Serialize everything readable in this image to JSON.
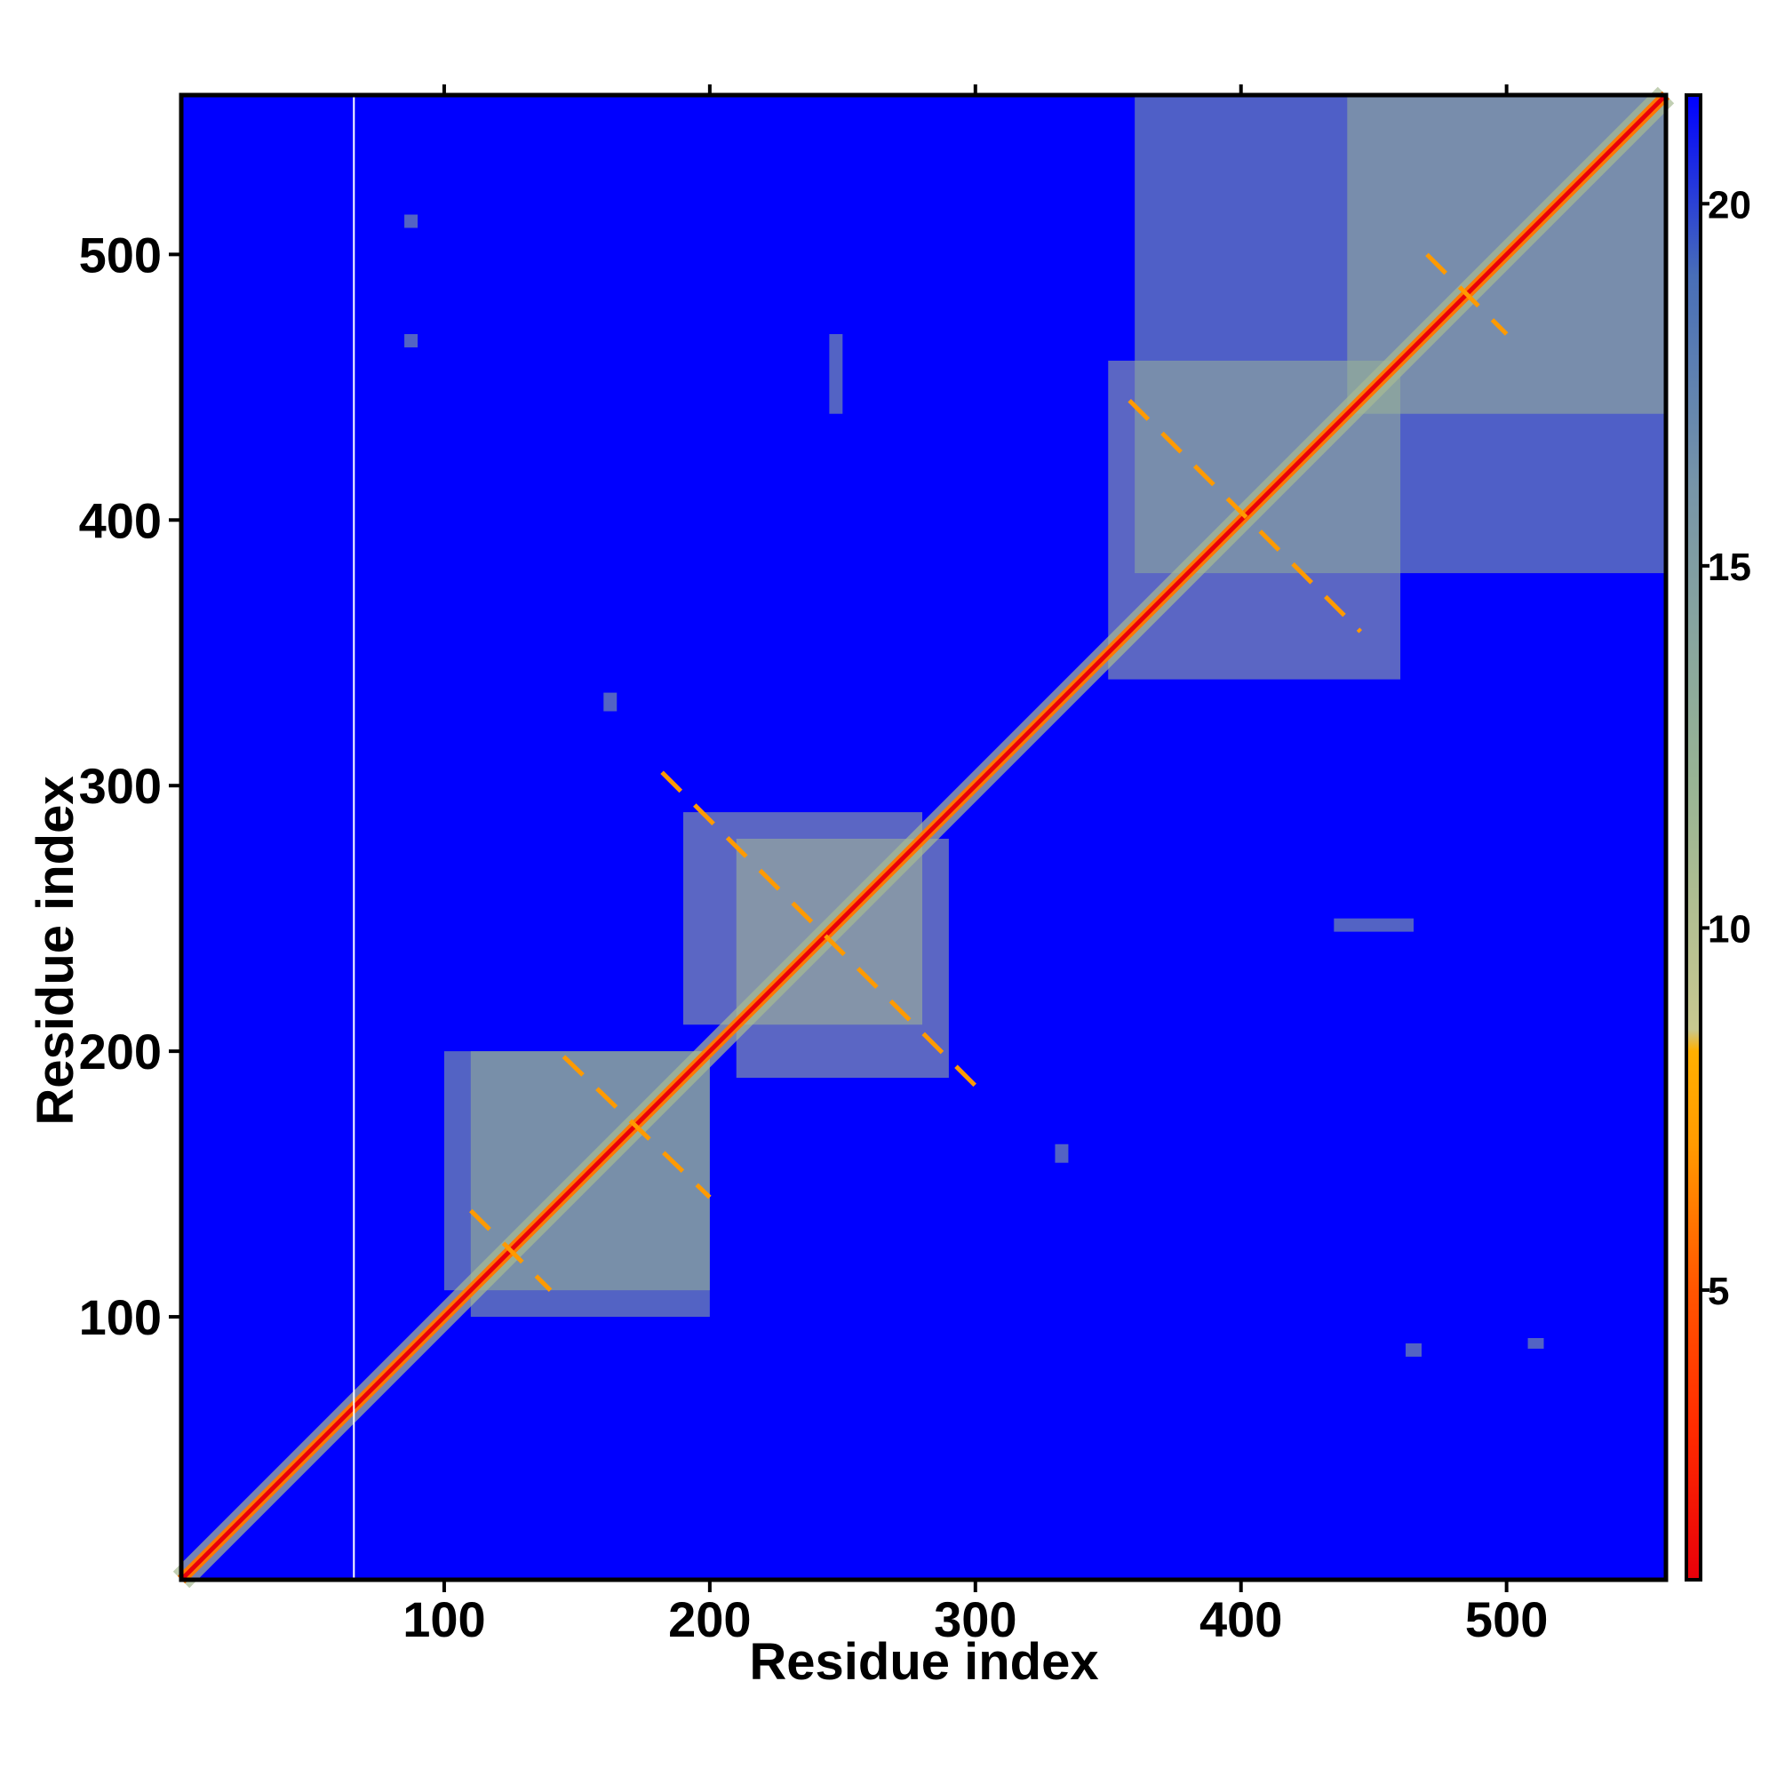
{
  "chart_data": {
    "type": "heatmap",
    "title": "",
    "xlabel": "Residue index",
    "ylabel": "Residue index",
    "xlim": [
      1,
      560
    ],
    "ylim": [
      1,
      560
    ],
    "x_ticks": [
      100,
      200,
      300,
      400,
      500
    ],
    "y_ticks": [
      100,
      200,
      300,
      400,
      500
    ],
    "colorbar": {
      "min": 1,
      "max": 21.5,
      "ticks": [
        5,
        10,
        15,
        20
      ],
      "stops": [
        {
          "value": 1,
          "color": "#e8000a"
        },
        {
          "value": 3,
          "color": "#ff2a00"
        },
        {
          "value": 5,
          "color": "#ff5500"
        },
        {
          "value": 7,
          "color": "#ff9a00"
        },
        {
          "value": 8.3,
          "color": "#ffb000"
        },
        {
          "value": 8.6,
          "color": "#c8c890"
        },
        {
          "value": 12,
          "color": "#98b494"
        },
        {
          "value": 16,
          "color": "#7896a8"
        },
        {
          "value": 19,
          "color": "#486eb8"
        },
        {
          "value": 21.5,
          "color": "#0000ff"
        }
      ]
    },
    "background_value": 21.5,
    "background_color": "#0000ff",
    "diagonal_color": "#e8000a",
    "gap_column_residue": 66,
    "contact_blocks": [
      {
        "x": [
          110,
          200
        ],
        "y": [
          100,
          200
        ],
        "value": 12
      },
      {
        "x": [
          100,
          200
        ],
        "y": [
          110,
          200
        ],
        "value": 12
      },
      {
        "x": [
          210,
          290
        ],
        "y": [
          190,
          280
        ],
        "value": 11
      },
      {
        "x": [
          190,
          280
        ],
        "y": [
          210,
          290
        ],
        "value": 11
      },
      {
        "x": [
          350,
          460
        ],
        "y": [
          340,
          460
        ],
        "value": 11
      },
      {
        "x": [
          440,
          560
        ],
        "y": [
          440,
          560
        ],
        "value": 11
      },
      {
        "x": [
          360,
          560
        ],
        "y": [
          380,
          560
        ],
        "value": 13
      },
      {
        "x": [
          85,
          90
        ],
        "y": [
          510,
          515
        ],
        "value": 12
      },
      {
        "x": [
          85,
          90
        ],
        "y": [
          465,
          470
        ],
        "value": 12
      },
      {
        "x": [
          462,
          468
        ],
        "y": [
          85,
          90
        ],
        "value": 12
      },
      {
        "x": [
          508,
          514
        ],
        "y": [
          88,
          92
        ],
        "value": 12
      },
      {
        "x": [
          160,
          165
        ],
        "y": [
          328,
          335
        ],
        "value": 12
      },
      {
        "x": [
          330,
          335
        ],
        "y": [
          158,
          165
        ],
        "value": 12
      },
      {
        "x": [
          245,
          250
        ],
        "y": [
          440,
          470
        ],
        "value": 12
      },
      {
        "x": [
          435,
          465
        ],
        "y": [
          245,
          250
        ],
        "value": 12
      }
    ],
    "off_diagonal_streaks": [
      {
        "from": [
          182,
          305
        ],
        "to": [
          305,
          182
        ],
        "value": 7
      },
      {
        "from": [
          145,
          198
        ],
        "to": [
          200,
          145
        ],
        "value": 7
      },
      {
        "from": [
          110,
          140
        ],
        "to": [
          140,
          110
        ],
        "value": 7
      },
      {
        "from": [
          358,
          445
        ],
        "to": [
          445,
          358
        ],
        "value": 7
      },
      {
        "from": [
          470,
          500
        ],
        "to": [
          500,
          470
        ],
        "value": 7
      }
    ]
  }
}
